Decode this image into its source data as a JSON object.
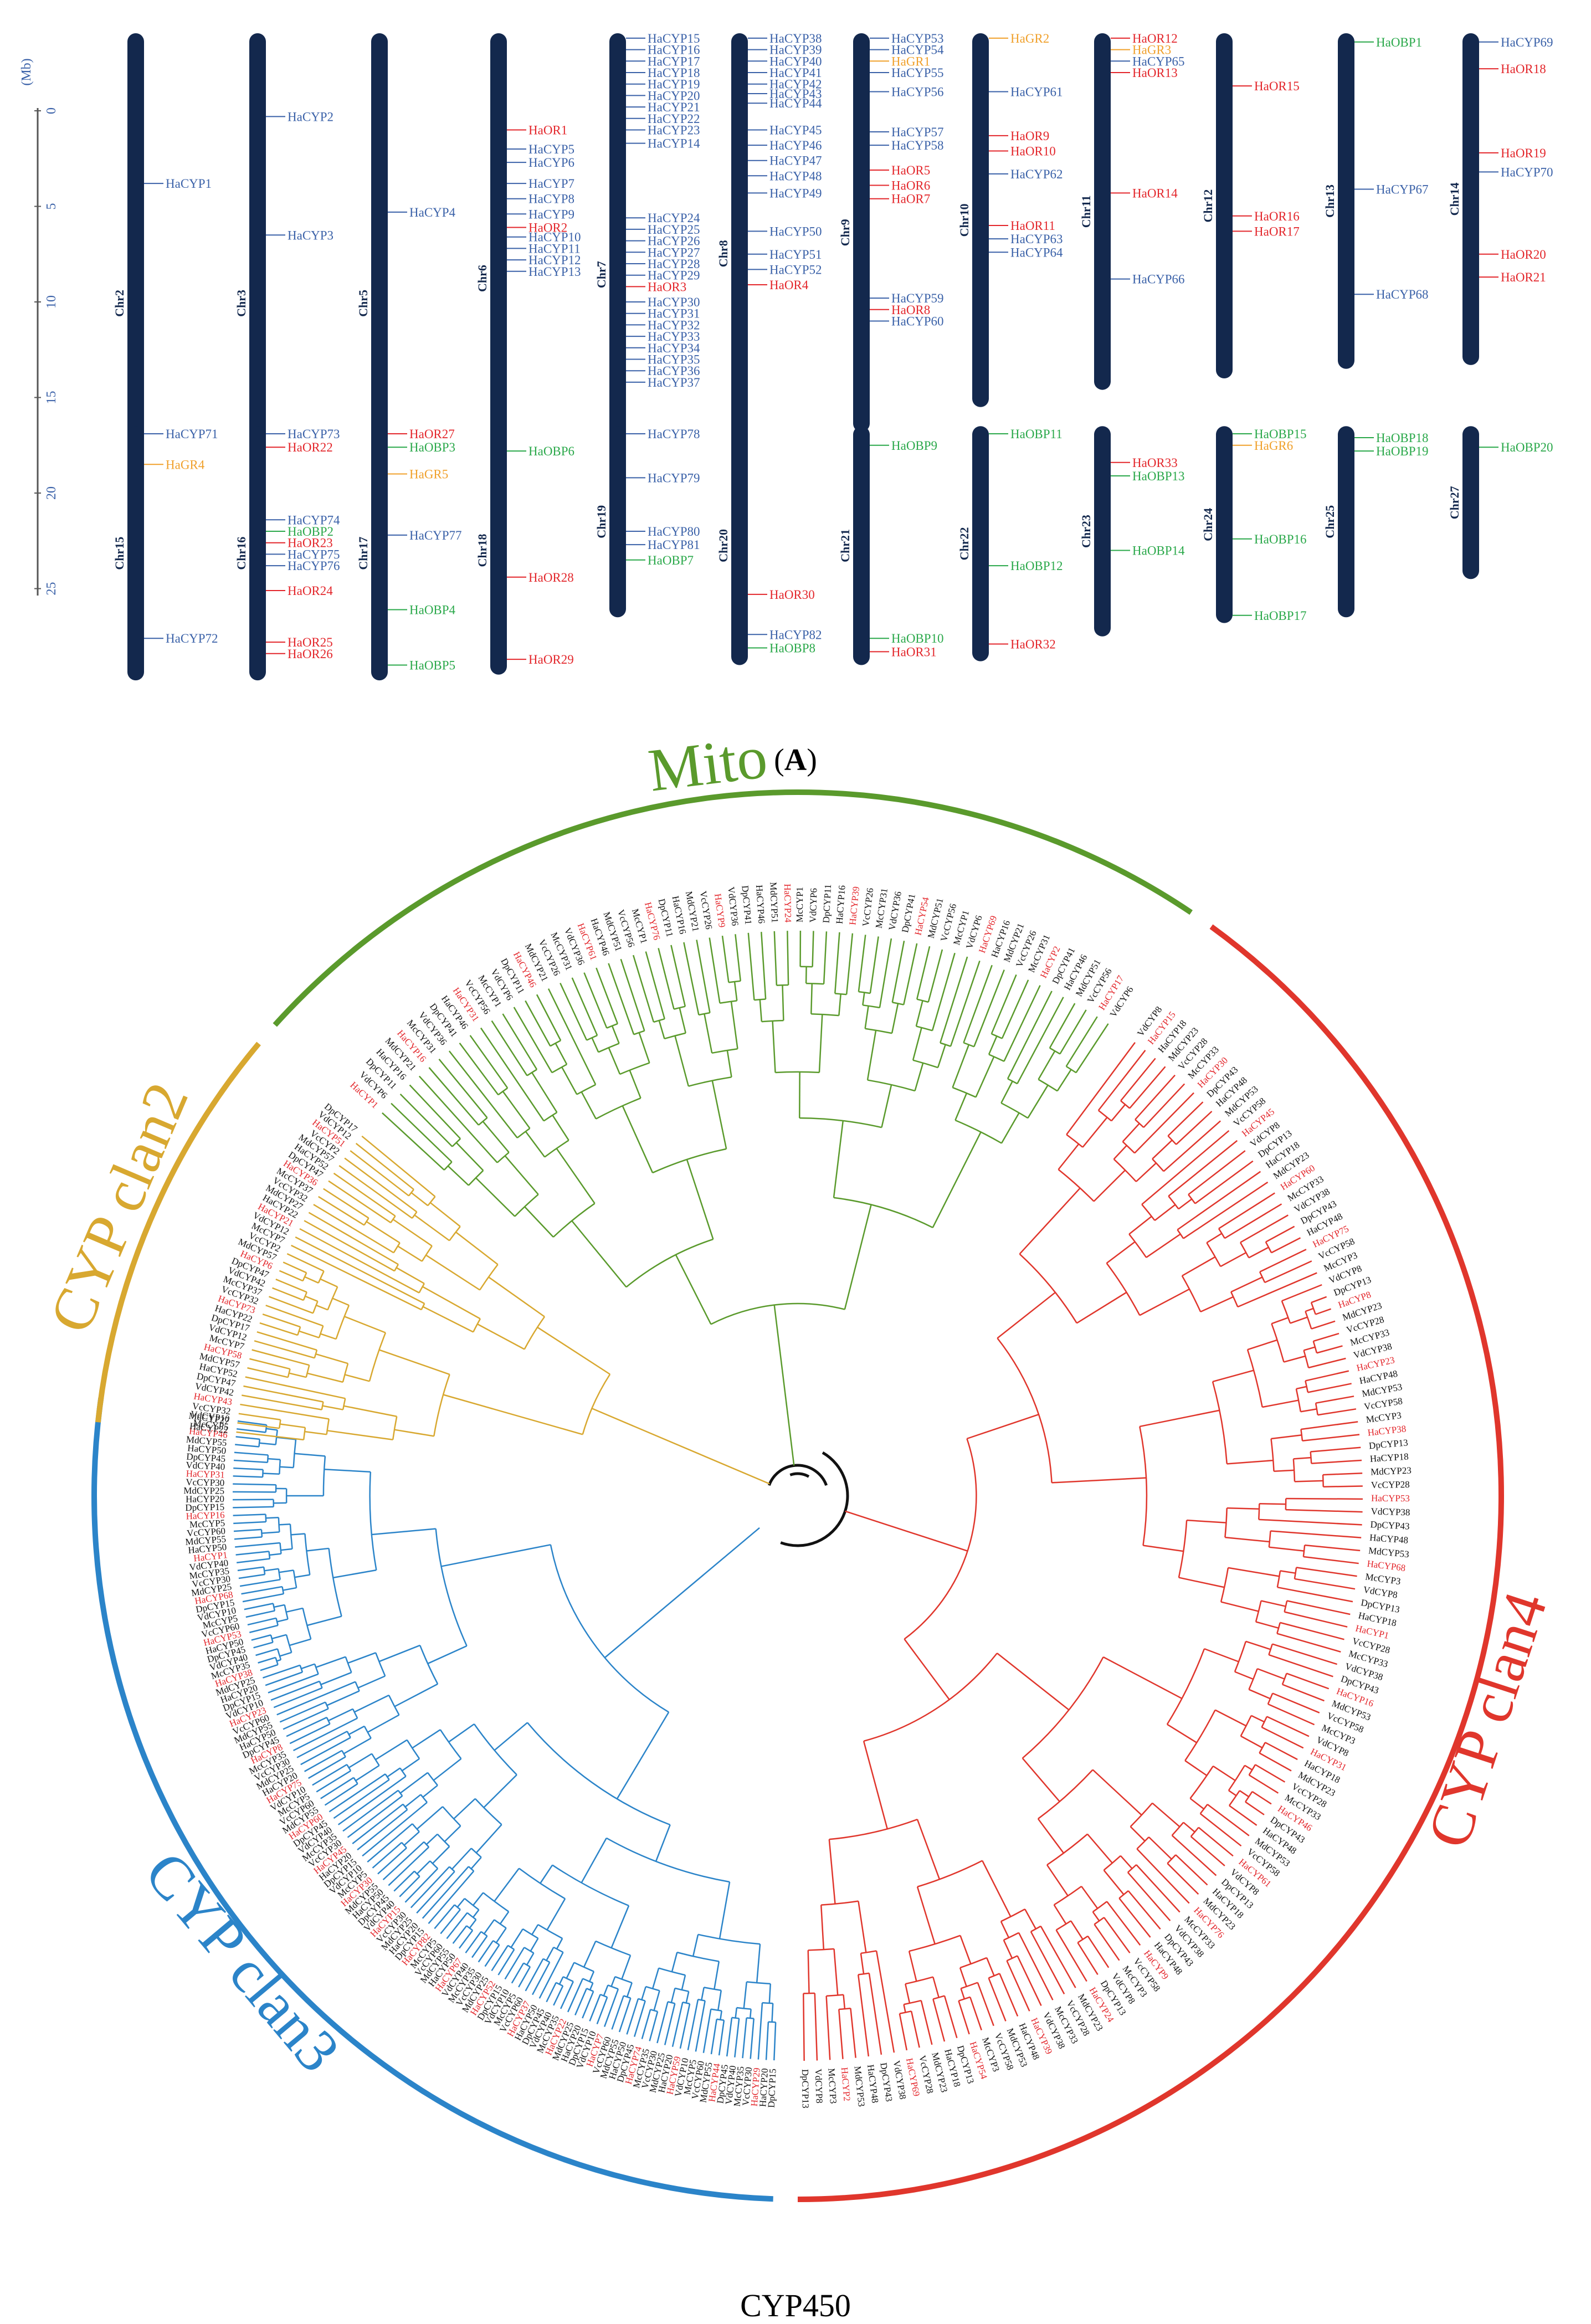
{
  "panel_label": {
    "open": "(",
    "letter": "A",
    "close": ")"
  },
  "caption": "CYP450",
  "colors": {
    "chrom": "#13284d",
    "cyp": "#3a61a8",
    "or": "#e3262b",
    "obp": "#2aa84a",
    "gr": "#f0a02b",
    "mito": "#5a9a2c",
    "clan2": "#d8a830",
    "clan3": "#2b84c9",
    "clan4": "#e0362c"
  },
  "scale": {
    "unit": "(Mb)",
    "ticks": [
      "0",
      "5",
      "10",
      "15",
      "20",
      "25"
    ]
  },
  "chromosomes": [
    {
      "name": "Chr2",
      "row": 1,
      "col": 0,
      "start": 0,
      "end": 24.2,
      "genes": [
        {
          "n": "HaCYP1",
          "p": 3.8,
          "c": "cyp"
        }
      ]
    },
    {
      "name": "Chr3",
      "row": 1,
      "col": 1,
      "start": 0,
      "end": 24.2,
      "genes": [
        {
          "n": "HaCYP2",
          "p": 0.3,
          "c": "cyp"
        },
        {
          "n": "HaCYP3",
          "p": 6.5,
          "c": "cyp"
        }
      ]
    },
    {
      "name": "Chr5",
      "row": 1,
      "col": 2,
      "start": 0,
      "end": 24.2,
      "genes": [
        {
          "n": "HaCYP4",
          "p": 5.3,
          "c": "cyp"
        }
      ]
    },
    {
      "name": "Chr6",
      "row": 1,
      "col": 3,
      "start": 0,
      "end": 21.6,
      "genes": [
        {
          "n": "HaOR1",
          "p": 1.0,
          "c": "or"
        },
        {
          "n": "HaCYP5",
          "p": 2.0,
          "c": "cyp"
        },
        {
          "n": "HaCYP6",
          "p": 2.7,
          "c": "cyp"
        },
        {
          "n": "HaCYP7",
          "p": 3.8,
          "c": "cyp"
        },
        {
          "n": "HaCYP8",
          "p": 4.6,
          "c": "cyp"
        },
        {
          "n": "HaCYP9",
          "p": 5.4,
          "c": "cyp"
        },
        {
          "n": "HaOR2",
          "p": 6.1,
          "c": "or"
        },
        {
          "n": "HaCYP10",
          "p": 6.6,
          "c": "cyp"
        },
        {
          "n": "HaCYP11",
          "p": 7.2,
          "c": "cyp"
        },
        {
          "n": "HaCYP12",
          "p": 7.8,
          "c": "cyp"
        },
        {
          "n": "HaCYP13",
          "p": 8.4,
          "c": "cyp"
        }
      ]
    },
    {
      "name": "Chr7",
      "row": 1,
      "col": 4,
      "start": 0,
      "end": 21.2,
      "genes": [
        {
          "n": "HaCYP15",
          "p": -3.8,
          "c": "cyp"
        },
        {
          "n": "HaCYP16",
          "p": -3.2,
          "c": "cyp"
        },
        {
          "n": "HaCYP17",
          "p": -2.6,
          "c": "cyp"
        },
        {
          "n": "HaCYP18",
          "p": -2.0,
          "c": "cyp"
        },
        {
          "n": "HaCYP19",
          "p": -1.4,
          "c": "cyp"
        },
        {
          "n": "HaCYP20",
          "p": -0.8,
          "c": "cyp"
        },
        {
          "n": "HaCYP21",
          "p": -0.2,
          "c": "cyp"
        },
        {
          "n": "HaCYP22",
          "p": 0.4,
          "c": "cyp"
        },
        {
          "n": "HaCYP23",
          "p": 1.0,
          "c": "cyp"
        },
        {
          "n": "HaCYP14",
          "p": 1.7,
          "c": "cyp"
        },
        {
          "n": "HaCYP24",
          "p": 5.6,
          "c": "cyp"
        },
        {
          "n": "HaCYP25",
          "p": 6.2,
          "c": "cyp"
        },
        {
          "n": "HaCYP26",
          "p": 6.8,
          "c": "cyp"
        },
        {
          "n": "HaCYP27",
          "p": 7.4,
          "c": "cyp"
        },
        {
          "n": "HaCYP28",
          "p": 8.0,
          "c": "cyp"
        },
        {
          "n": "HaCYP29",
          "p": 8.6,
          "c": "cyp"
        },
        {
          "n": "HaOR3",
          "p": 9.2,
          "c": "or"
        },
        {
          "n": "HaCYP30",
          "p": 10.0,
          "c": "cyp"
        },
        {
          "n": "HaCYP31",
          "p": 10.6,
          "c": "cyp"
        },
        {
          "n": "HaCYP32",
          "p": 11.2,
          "c": "cyp"
        },
        {
          "n": "HaCYP33",
          "p": 11.8,
          "c": "cyp"
        },
        {
          "n": "HaCYP34",
          "p": 12.4,
          "c": "cyp"
        },
        {
          "n": "HaCYP35",
          "p": 13.0,
          "c": "cyp"
        },
        {
          "n": "HaCYP36",
          "p": 13.6,
          "c": "cyp"
        },
        {
          "n": "HaCYP37",
          "p": 14.2,
          "c": "cyp"
        }
      ]
    },
    {
      "name": "Chr8",
      "row": 1,
      "col": 5,
      "start": 0,
      "end": 19.0,
      "genes": [
        {
          "n": "HaCYP38",
          "p": -3.8,
          "c": "cyp"
        },
        {
          "n": "HaCYP39",
          "p": -3.2,
          "c": "cyp"
        },
        {
          "n": "HaCYP40",
          "p": -2.6,
          "c": "cyp"
        },
        {
          "n": "HaCYP41",
          "p": -2.0,
          "c": "cyp"
        },
        {
          "n": "HaCYP42",
          "p": -1.4,
          "c": "cyp"
        },
        {
          "n": "HaCYP43",
          "p": -0.9,
          "c": "cyp"
        },
        {
          "n": "HaCYP44",
          "p": -0.4,
          "c": "cyp"
        },
        {
          "n": "HaCYP45",
          "p": 1.0,
          "c": "cyp"
        },
        {
          "n": "HaCYP46",
          "p": 1.8,
          "c": "cyp"
        },
        {
          "n": "HaCYP47",
          "p": 2.6,
          "c": "cyp"
        },
        {
          "n": "HaCYP48",
          "p": 3.4,
          "c": "cyp"
        },
        {
          "n": "HaCYP49",
          "p": 4.3,
          "c": "cyp"
        },
        {
          "n": "HaCYP50",
          "p": 6.3,
          "c": "cyp"
        },
        {
          "n": "HaCYP51",
          "p": 7.5,
          "c": "cyp"
        },
        {
          "n": "HaCYP52",
          "p": 8.3,
          "c": "cyp"
        },
        {
          "n": "HaOR4",
          "p": 9.1,
          "c": "or"
        }
      ]
    },
    {
      "name": "Chr9",
      "row": 1,
      "col": 6,
      "start": 0,
      "end": 16.8,
      "genes": [
        {
          "n": "HaCYP53",
          "p": -3.8,
          "c": "cyp"
        },
        {
          "n": "HaCYP54",
          "p": -3.2,
          "c": "cyp"
        },
        {
          "n": "HaGR1",
          "p": -2.6,
          "c": "gr"
        },
        {
          "n": "HaCYP55",
          "p": -2.0,
          "c": "cyp"
        },
        {
          "n": "HaCYP56",
          "p": -1.0,
          "c": "cyp"
        },
        {
          "n": "HaCYP57",
          "p": 1.1,
          "c": "cyp"
        },
        {
          "n": "HaCYP58",
          "p": 1.8,
          "c": "cyp"
        },
        {
          "n": "HaOR5",
          "p": 3.1,
          "c": "or"
        },
        {
          "n": "HaOR6",
          "p": 3.9,
          "c": "or"
        },
        {
          "n": "HaOR7",
          "p": 4.6,
          "c": "or"
        },
        {
          "n": "HaCYP59",
          "p": 9.8,
          "c": "cyp"
        },
        {
          "n": "HaOR8",
          "p": 10.4,
          "c": "or"
        },
        {
          "n": "HaCYP60",
          "p": 11.0,
          "c": "cyp"
        }
      ]
    },
    {
      "name": "Chr10",
      "row": 1,
      "col": 7,
      "start": 0,
      "end": 15.5,
      "genes": [
        {
          "n": "HaGR2",
          "p": -3.8,
          "c": "gr"
        },
        {
          "n": "HaCYP61",
          "p": -1.0,
          "c": "cyp"
        },
        {
          "n": "HaOR9",
          "p": 1.3,
          "c": "or"
        },
        {
          "n": "HaOR10",
          "p": 2.1,
          "c": "or"
        },
        {
          "n": "HaCYP62",
          "p": 3.3,
          "c": "cyp"
        },
        {
          "n": "HaOR11",
          "p": 6.0,
          "c": "or"
        },
        {
          "n": "HaCYP63",
          "p": 6.7,
          "c": "cyp"
        },
        {
          "n": "HaCYP64",
          "p": 7.4,
          "c": "cyp"
        }
      ]
    },
    {
      "name": "Chr11",
      "row": 1,
      "col": 8,
      "start": 0,
      "end": 14.6,
      "genes": [
        {
          "n": "HaOR12",
          "p": -3.8,
          "c": "or"
        },
        {
          "n": "HaGR3",
          "p": -3.2,
          "c": "gr"
        },
        {
          "n": "HaCYP65",
          "p": -2.6,
          "c": "cyp"
        },
        {
          "n": "HaOR13",
          "p": -2.0,
          "c": "or"
        },
        {
          "n": "HaOR14",
          "p": 4.3,
          "c": "or"
        },
        {
          "n": "HaCYP66",
          "p": 8.8,
          "c": "cyp"
        }
      ]
    },
    {
      "name": "Chr12",
      "row": 1,
      "col": 9,
      "start": 0,
      "end": 14.0,
      "genes": [
        {
          "n": "HaOR15",
          "p": -1.3,
          "c": "or"
        },
        {
          "n": "HaOR16",
          "p": 5.5,
          "c": "or"
        },
        {
          "n": "HaOR17",
          "p": 6.3,
          "c": "or"
        }
      ]
    },
    {
      "name": "Chr13",
      "row": 1,
      "col": 10,
      "start": 0,
      "end": 13.5,
      "genes": [
        {
          "n": "HaOBP1",
          "p": -3.6,
          "c": "obp"
        },
        {
          "n": "HaCYP67",
          "p": 4.1,
          "c": "cyp"
        },
        {
          "n": "HaCYP68",
          "p": 9.6,
          "c": "cyp"
        }
      ]
    },
    {
      "name": "Chr14",
      "row": 1,
      "col": 11,
      "start": 0,
      "end": 13.3,
      "genes": [
        {
          "n": "HaCYP69",
          "p": -3.6,
          "c": "cyp"
        },
        {
          "n": "HaOR18",
          "p": -2.2,
          "c": "or"
        },
        {
          "n": "HaOR19",
          "p": 2.2,
          "c": "or"
        },
        {
          "n": "HaCYP70",
          "p": 3.2,
          "c": "cyp"
        },
        {
          "n": "HaOR20",
          "p": 7.5,
          "c": "or"
        },
        {
          "n": "HaOR21",
          "p": 8.7,
          "c": "or"
        }
      ]
    },
    {
      "name": "Chr15",
      "row": 2,
      "col": 0,
      "start": 16.5,
      "end": 29.8,
      "genes": [
        {
          "n": "HaCYP71",
          "p": 16.9,
          "c": "cyp"
        },
        {
          "n": "HaGR4",
          "p": 18.5,
          "c": "gr"
        },
        {
          "n": "HaCYP72",
          "p": 27.6,
          "c": "cyp"
        }
      ]
    },
    {
      "name": "Chr16",
      "row": 2,
      "col": 1,
      "start": 16.5,
      "end": 29.8,
      "genes": [
        {
          "n": "HaCYP73",
          "p": 16.9,
          "c": "cyp"
        },
        {
          "n": "HaOR22",
          "p": 17.6,
          "c": "or"
        },
        {
          "n": "HaCYP74",
          "p": 21.4,
          "c": "cyp"
        },
        {
          "n": "HaOBP2",
          "p": 22.0,
          "c": "obp"
        },
        {
          "n": "HaOR23",
          "p": 22.6,
          "c": "or"
        },
        {
          "n": "HaCYP75",
          "p": 23.2,
          "c": "cyp"
        },
        {
          "n": "HaCYP76",
          "p": 23.8,
          "c": "cyp"
        },
        {
          "n": "HaOR24",
          "p": 25.1,
          "c": "or"
        },
        {
          "n": "HaOR25",
          "p": 27.8,
          "c": "or"
        },
        {
          "n": "HaOR26",
          "p": 28.4,
          "c": "or"
        }
      ]
    },
    {
      "name": "Chr17",
      "row": 2,
      "col": 2,
      "start": 16.5,
      "end": 29.8,
      "genes": [
        {
          "n": "HaOR27",
          "p": 16.9,
          "c": "or"
        },
        {
          "n": "HaOBP3",
          "p": 17.6,
          "c": "obp"
        },
        {
          "n": "HaGR5",
          "p": 19.0,
          "c": "gr"
        },
        {
          "n": "HaCYP77",
          "p": 22.2,
          "c": "cyp"
        },
        {
          "n": "HaOBP4",
          "p": 26.1,
          "c": "obp"
        },
        {
          "n": "HaOBP5",
          "p": 29.0,
          "c": "obp"
        }
      ]
    },
    {
      "name": "Chr18",
      "row": 2,
      "col": 3,
      "start": 16.5,
      "end": 29.5,
      "genes": [
        {
          "n": "HaOBP6",
          "p": 17.8,
          "c": "obp"
        },
        {
          "n": "HaOR28",
          "p": 24.4,
          "c": "or"
        },
        {
          "n": "HaOR29",
          "p": 28.7,
          "c": "or"
        }
      ]
    },
    {
      "name": "Chr19",
      "row": 2,
      "col": 4,
      "start": 16.5,
      "end": 26.5,
      "genes": [
        {
          "n": "HaCYP78",
          "p": 16.9,
          "c": "cyp"
        },
        {
          "n": "HaCYP79",
          "p": 19.2,
          "c": "cyp"
        },
        {
          "n": "HaCYP80",
          "p": 22.0,
          "c": "cyp"
        },
        {
          "n": "HaCYP81",
          "p": 22.7,
          "c": "cyp"
        },
        {
          "n": "HaOBP7",
          "p": 23.5,
          "c": "obp"
        }
      ]
    },
    {
      "name": "Chr20",
      "row": 2,
      "col": 5,
      "start": 16.5,
      "end": 29.0,
      "genes": [
        {
          "n": "HaOR30",
          "p": 25.3,
          "c": "or"
        },
        {
          "n": "HaCYP82",
          "p": 27.4,
          "c": "cyp"
        },
        {
          "n": "HaOBP8",
          "p": 28.1,
          "c": "obp"
        }
      ]
    },
    {
      "name": "Chr21",
      "row": 2,
      "col": 6,
      "start": 16.5,
      "end": 29.0,
      "genes": [
        {
          "n": "HaOBP9",
          "p": 17.5,
          "c": "obp"
        },
        {
          "n": "HaOBP10",
          "p": 27.6,
          "c": "obp"
        },
        {
          "n": "HaOR31",
          "p": 28.3,
          "c": "or"
        }
      ]
    },
    {
      "name": "Chr22",
      "row": 2,
      "col": 7,
      "start": 16.5,
      "end": 28.8,
      "genes": [
        {
          "n": "HaOBP11",
          "p": 16.9,
          "c": "obp"
        },
        {
          "n": "HaOBP12",
          "p": 23.8,
          "c": "obp"
        },
        {
          "n": "HaOR32",
          "p": 27.9,
          "c": "or"
        }
      ]
    },
    {
      "name": "Chr23",
      "row": 2,
      "col": 8,
      "start": 16.5,
      "end": 27.5,
      "genes": [
        {
          "n": "HaOR33",
          "p": 18.4,
          "c": "or"
        },
        {
          "n": "HaOBP13",
          "p": 19.1,
          "c": "obp"
        },
        {
          "n": "HaOBP14",
          "p": 23.0,
          "c": "obp"
        }
      ]
    },
    {
      "name": "Chr24",
      "row": 2,
      "col": 9,
      "start": 16.5,
      "end": 26.8,
      "genes": [
        {
          "n": "HaOBP15",
          "p": 16.9,
          "c": "obp"
        },
        {
          "n": "HaGR6",
          "p": 17.5,
          "c": "gr"
        },
        {
          "n": "HaOBP16",
          "p": 22.4,
          "c": "obp"
        },
        {
          "n": "HaOBP17",
          "p": 26.4,
          "c": "obp"
        }
      ]
    },
    {
      "name": "Chr25",
      "row": 2,
      "col": 10,
      "start": 16.5,
      "end": 26.5,
      "genes": [
        {
          "n": "HaOBP18",
          "p": 17.1,
          "c": "obp"
        },
        {
          "n": "HaOBP19",
          "p": 17.8,
          "c": "obp"
        }
      ]
    },
    {
      "name": "Chr27",
      "row": 2,
      "col": 11,
      "start": 16.5,
      "end": 24.5,
      "genes": [
        {
          "n": "HaOBP20",
          "p": 17.6,
          "c": "obp"
        }
      ]
    }
  ],
  "tree": {
    "clades": [
      {
        "label": "Mito",
        "color": "mito",
        "from": 222,
        "to": 304,
        "leaves": 62
      },
      {
        "label": "CYP clan4",
        "color": "clan4",
        "from": 306,
        "to": 450,
        "leaves": 110
      },
      {
        "label": "CYP clan3",
        "color": "clan3",
        "from": 452,
        "to": 548,
        "leaves": 120
      },
      {
        "label": "CYP clan2",
        "color": "clan2",
        "from": 186,
        "to": 220,
        "leaves": 36
      }
    ],
    "prefixes": [
      "McCYP",
      "VdCYP",
      "DpCYP",
      "HaCYP",
      "MdCYP",
      "VcCYP"
    ]
  }
}
